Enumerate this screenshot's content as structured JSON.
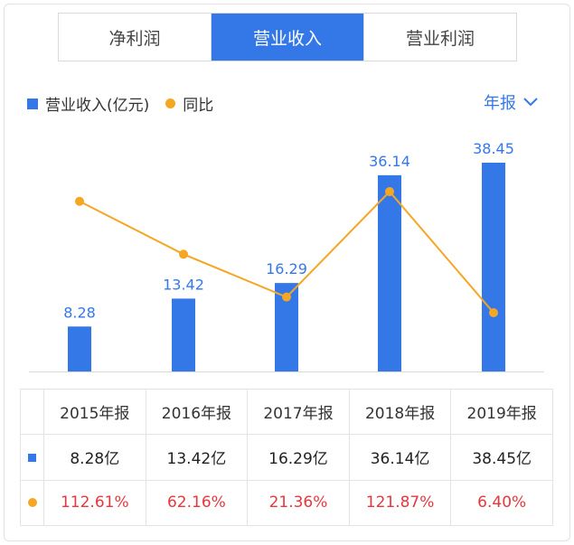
{
  "tabs": [
    {
      "label": "净利润",
      "active": false
    },
    {
      "label": "营业收入",
      "active": true
    },
    {
      "label": "营业利润",
      "active": false
    }
  ],
  "legend": {
    "bar_label": "营业收入(亿元)",
    "line_label": "同比"
  },
  "period_selector": {
    "label": "年报"
  },
  "colors": {
    "bar": "#3478e8",
    "line": "#f5a623",
    "negative_text": "#e8363d"
  },
  "chart_data": {
    "type": "bar",
    "categories": [
      "2015年报",
      "2016年报",
      "2017年报",
      "2018年报",
      "2019年报"
    ],
    "series": [
      {
        "name": "营业收入(亿元)",
        "type": "bar",
        "values": [
          8.28,
          13.42,
          16.29,
          36.14,
          38.45
        ],
        "labels": [
          "8.28",
          "13.42",
          "16.29",
          "36.14",
          "38.45"
        ]
      },
      {
        "name": "同比",
        "type": "line",
        "values": [
          112.61,
          62.16,
          21.36,
          121.87,
          6.4
        ]
      }
    ],
    "title": "",
    "xlabel": "",
    "ylabel": ""
  },
  "table": {
    "headers": [
      "2015年报",
      "2016年报",
      "2017年报",
      "2018年报",
      "2019年报"
    ],
    "revenue_row": [
      "8.28亿",
      "13.42亿",
      "16.29亿",
      "36.14亿",
      "38.45亿"
    ],
    "yoy_row": [
      "112.61%",
      "62.16%",
      "21.36%",
      "121.87%",
      "6.40%"
    ]
  }
}
